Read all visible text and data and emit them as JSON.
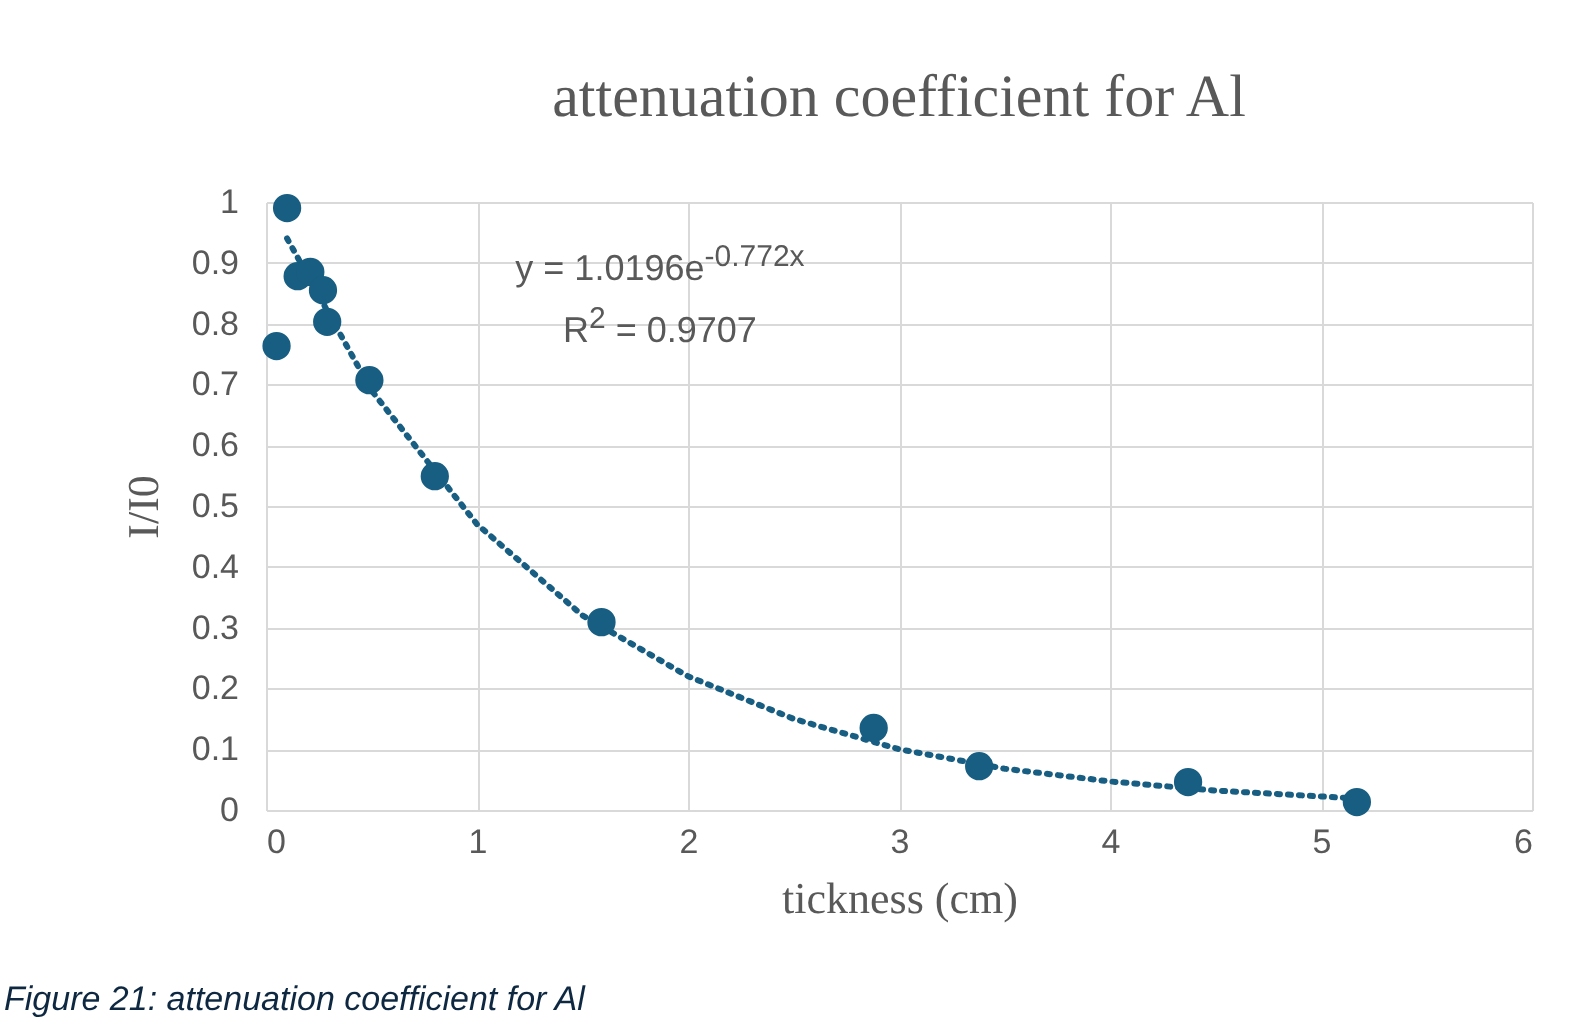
{
  "chart_data": {
    "type": "scatter",
    "title": "attenuation coefficient for Al",
    "xlabel": "tickness (cm)",
    "ylabel": "I/I0",
    "series": [
      {
        "color": "#175e82",
        "marker": "circle",
        "x": [
          0.05,
          0.1,
          0.15,
          0.21,
          0.27,
          0.29,
          0.49,
          0.8,
          1.59,
          2.88,
          3.38,
          4.37,
          5.17
        ],
        "values": [
          0.763,
          0.99,
          0.878,
          0.885,
          0.855,
          0.803,
          0.707,
          0.549,
          0.309,
          0.135,
          0.072,
          0.046,
          0.013
        ]
      },
      {
        "type": "line",
        "color": "#175e82",
        "line_style": "dotted",
        "x": [
          0.1,
          0.5,
          1,
          1.5,
          2,
          2.5,
          3,
          3.5,
          4,
          4.5,
          5.17
        ],
        "values": [
          0.94,
          0.69,
          0.47,
          0.32,
          0.22,
          0.15,
          0.1,
          0.068,
          0.047,
          0.032,
          0.019
        ]
      }
    ],
    "xlim": [
      0,
      6
    ],
    "xticks": [
      0,
      1,
      2,
      3,
      4,
      5,
      6
    ],
    "ylim": [
      0,
      1
    ],
    "yticks": [
      0,
      0.1,
      0.2,
      0.3,
      0.4,
      0.5,
      0.6,
      0.7,
      0.8,
      0.9,
      1
    ],
    "grid": true,
    "annotations": [
      "y = 1.0196e$^{-0.772x}$",
      "R$^{2}$ = 0.9707",
      "Figure 21: attenuation coefficient for Al"
    ]
  }
}
